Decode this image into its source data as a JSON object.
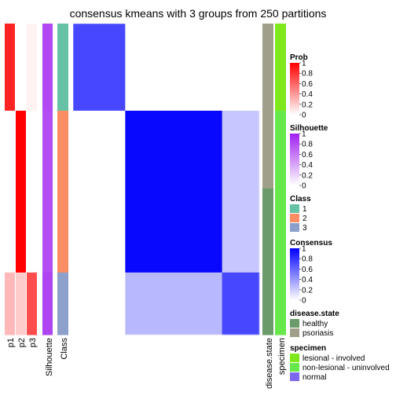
{
  "chart_data": {
    "type": "heatmap",
    "title": "consensus kmeans with 3 groups from 250 partitions",
    "groups": [
      {
        "class": "1",
        "fraction": 0.28,
        "silhouette": 0.82
      },
      {
        "class": "2",
        "fraction": 0.52,
        "silhouette": 0.8
      },
      {
        "class": "3",
        "fraction": 0.2,
        "silhouette": 0.84
      }
    ],
    "within_consensus": [
      [
        0.72,
        0.0,
        0.0
      ],
      [
        0.0,
        0.97,
        0.22
      ],
      [
        0.0,
        0.28,
        0.72
      ]
    ],
    "membership_prob": {
      "p1": [
        0.86,
        0.0,
        0.28
      ],
      "p2": [
        0.0,
        1.0,
        0.2
      ],
      "p3": [
        0.05,
        0.0,
        0.7
      ]
    },
    "annotation_labels": [
      "p1",
      "p2",
      "p3",
      "Silhouette",
      "Class"
    ],
    "column_annotation_labels": [
      "disease.state",
      "specimen"
    ],
    "legends": [
      {
        "title": "Prob",
        "type": "continuous",
        "ticks": [
          "1",
          "0.8",
          "0.6",
          "0.4",
          "0.2",
          "0"
        ],
        "colors": [
          "#ff0000",
          "#ffffff"
        ]
      },
      {
        "title": "Silhouette",
        "type": "continuous",
        "ticks": [
          "1",
          "0.8",
          "0.6",
          "0.4",
          "0.2",
          "0"
        ],
        "colors": [
          "#a020f0",
          "#ffffff"
        ]
      },
      {
        "title": "Class",
        "type": "discrete",
        "items": [
          {
            "label": "1",
            "color": "#66c2a5"
          },
          {
            "label": "2",
            "color": "#fc8d62"
          },
          {
            "label": "3",
            "color": "#8da0cb"
          }
        ]
      },
      {
        "title": "Consensus",
        "type": "continuous",
        "ticks": [
          "1",
          "0.8",
          "0.6",
          "0.4",
          "0.2",
          "0"
        ],
        "colors": [
          "#0000ff",
          "#ffffff"
        ]
      },
      {
        "title": "disease.state",
        "type": "discrete",
        "items": [
          {
            "label": "healthy",
            "color": "#6b9a6b"
          },
          {
            "label": "psoriasis",
            "color": "#a0a08a"
          }
        ]
      },
      {
        "title": "specimen",
        "type": "discrete",
        "items": [
          {
            "label": "lesional - involved",
            "color": "#7fe81c"
          },
          {
            "label": "non-lesional - uninvolved",
            "color": "#66e84a"
          },
          {
            "label": "normal",
            "color": "#7b68ee"
          }
        ]
      }
    ]
  }
}
